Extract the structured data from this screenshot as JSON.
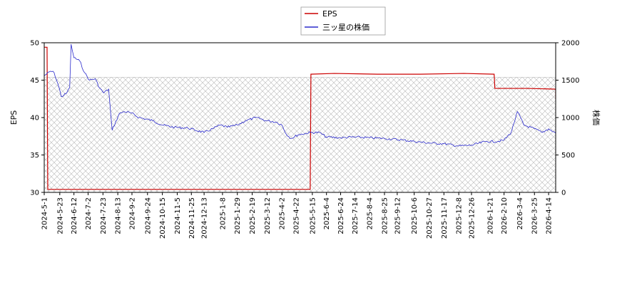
{
  "chart_data": {
    "type": "line",
    "legend": {
      "placement": "top-center",
      "entries": [
        "EPS",
        "三ッ星の株価"
      ]
    },
    "series": [
      {
        "name": "EPS",
        "axis": "left",
        "color": "#cc0000",
        "points": [
          [
            "2024-05-01",
            49.4
          ],
          [
            "2024-05-05",
            49.4
          ],
          [
            "2024-05-06",
            30.4
          ],
          [
            "2024-08-01",
            30.4
          ],
          [
            "2024-12-01",
            30.4
          ],
          [
            "2025-05-12",
            30.4
          ],
          [
            "2025-05-13",
            45.8
          ],
          [
            "2025-06-15",
            45.9
          ],
          [
            "2025-08-15",
            45.8
          ],
          [
            "2025-10-15",
            45.8
          ],
          [
            "2025-12-15",
            45.9
          ],
          [
            "2026-01-27",
            45.8
          ],
          [
            "2026-01-28",
            43.9
          ],
          [
            "2026-03-15",
            43.9
          ],
          [
            "2026-04-24",
            43.8
          ],
          [
            "2026-04-24",
            42.5
          ]
        ]
      },
      {
        "name": "三ッ星の株価",
        "axis": "right",
        "color": "#2a2acc",
        "points": [
          [
            "2024-05-01",
            1560
          ],
          [
            "2024-05-10",
            1620
          ],
          [
            "2024-05-15",
            1600
          ],
          [
            "2024-05-22",
            1400
          ],
          [
            "2024-05-25",
            1280
          ],
          [
            "2024-06-01",
            1320
          ],
          [
            "2024-06-06",
            1400
          ],
          [
            "2024-06-08",
            1980
          ],
          [
            "2024-06-12",
            1800
          ],
          [
            "2024-06-20",
            1760
          ],
          [
            "2024-06-27",
            1600
          ],
          [
            "2024-07-04",
            1500
          ],
          [
            "2024-07-12",
            1520
          ],
          [
            "2024-07-18",
            1400
          ],
          [
            "2024-07-24",
            1330
          ],
          [
            "2024-07-31",
            1380
          ],
          [
            "2024-08-05",
            830
          ],
          [
            "2024-08-15",
            1050
          ],
          [
            "2024-08-22",
            1080
          ],
          [
            "2024-09-01",
            1060
          ],
          [
            "2024-09-12",
            1000
          ],
          [
            "2024-10-01",
            960
          ],
          [
            "2024-10-15",
            900
          ],
          [
            "2024-11-01",
            870
          ],
          [
            "2024-11-20",
            860
          ],
          [
            "2024-12-13",
            800
          ],
          [
            "2024-12-25",
            850
          ],
          [
            "2025-01-05",
            900
          ],
          [
            "2025-01-15",
            870
          ],
          [
            "2025-01-29",
            900
          ],
          [
            "2025-02-10",
            960
          ],
          [
            "2025-02-25",
            1000
          ],
          [
            "2025-03-10",
            960
          ],
          [
            "2025-03-25",
            940
          ],
          [
            "2025-04-02",
            900
          ],
          [
            "2025-04-08",
            780
          ],
          [
            "2025-04-15",
            720
          ],
          [
            "2025-04-25",
            770
          ],
          [
            "2025-05-12",
            800
          ],
          [
            "2025-05-25",
            800
          ],
          [
            "2025-06-04",
            740
          ],
          [
            "2025-06-24",
            730
          ],
          [
            "2025-07-14",
            740
          ],
          [
            "2025-08-04",
            730
          ],
          [
            "2025-08-25",
            720
          ],
          [
            "2025-09-20",
            700
          ],
          [
            "2025-10-06",
            680
          ],
          [
            "2025-10-27",
            660
          ],
          [
            "2025-11-17",
            650
          ],
          [
            "2025-12-08",
            620
          ],
          [
            "2025-12-26",
            630
          ],
          [
            "2026-01-15",
            680
          ],
          [
            "2026-02-01",
            680
          ],
          [
            "2026-02-10",
            700
          ],
          [
            "2026-02-20",
            800
          ],
          [
            "2026-03-01",
            1080
          ],
          [
            "2026-03-10",
            900
          ],
          [
            "2026-03-25",
            850
          ],
          [
            "2026-04-05",
            800
          ],
          [
            "2026-04-14",
            850
          ],
          [
            "2026-04-24",
            790
          ]
        ]
      }
    ],
    "x": {
      "type": "date",
      "range": [
        "2024-05-01",
        "2026-04-24"
      ],
      "tick_labels": [
        "2024-5-1",
        "2024-5-23",
        "2024-6-12",
        "2024-7-2",
        "2024-7-23",
        "2024-8-13",
        "2024-9-2",
        "2024-9-24",
        "2024-10-15",
        "2024-11-5",
        "2024-11-25",
        "2024-12-13",
        "2025-1-8",
        "2025-1-29",
        "2025-2-19",
        "2025-3-12",
        "2025-4-2",
        "2025-4-22",
        "2025-5-15",
        "2025-6-4",
        "2025-6-24",
        "2025-7-14",
        "2025-8-4",
        "2025-8-25",
        "2025-9-12",
        "2025-10-6",
        "2025-10-27",
        "2025-11-17",
        "2025-12-8",
        "2025-12-26",
        "2026-1-21",
        "2026-2-10",
        "2026-3-4",
        "2026-3-25",
        "2026-4-14"
      ]
    },
    "y_left": {
      "label": "EPS",
      "range": [
        30,
        50
      ],
      "ticks": [
        30,
        35,
        40,
        45,
        50
      ]
    },
    "y_right": {
      "label": "株価",
      "range": [
        0,
        2000
      ],
      "ticks": [
        0,
        500,
        1000,
        1500,
        2000
      ]
    },
    "hatch": {
      "region": "below",
      "value_left": 45.4,
      "color": "#b0b0b0"
    },
    "grid": false
  }
}
